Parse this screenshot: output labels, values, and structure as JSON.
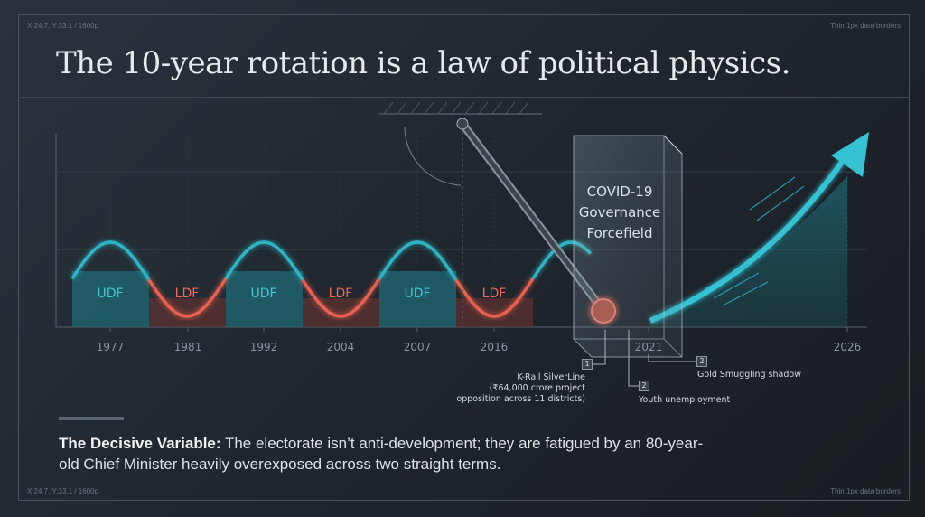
{
  "meta": {
    "coords": "X:24.7, Y:33.1 / 1600p",
    "note": "Thin 1px data borders"
  },
  "title": "The 10-year rotation is a law of political physics.",
  "timeline": {
    "segments": [
      "UDF",
      "LDF",
      "UDF",
      "LDF",
      "UDF",
      "LDF"
    ],
    "years": [
      "1977",
      "1981",
      "1992",
      "2004",
      "2007",
      "2016",
      "2021",
      "2026"
    ],
    "colors": {
      "udf": "#2fb4c4",
      "ldf": "#e8604f"
    }
  },
  "forcefield": {
    "line1": "COVID-19",
    "line2": "Governance",
    "line3": "Forcefield"
  },
  "annotations": [
    {
      "badge": "1",
      "lines": [
        "K-Rail SilverLine",
        "(₹64,000 crore project",
        "opposition across 11 districts)"
      ]
    },
    {
      "badge": "2",
      "text": "Youth unemployment"
    },
    {
      "badge": "2",
      "text": "Gold Smuggling shadow"
    }
  ],
  "footer": {
    "label": "The Decisive Variable:",
    "text": " The electorate isn’t anti-development; they are fatigued by an 80-year-old Chief Minister heavily overexposed across two straight terms."
  }
}
